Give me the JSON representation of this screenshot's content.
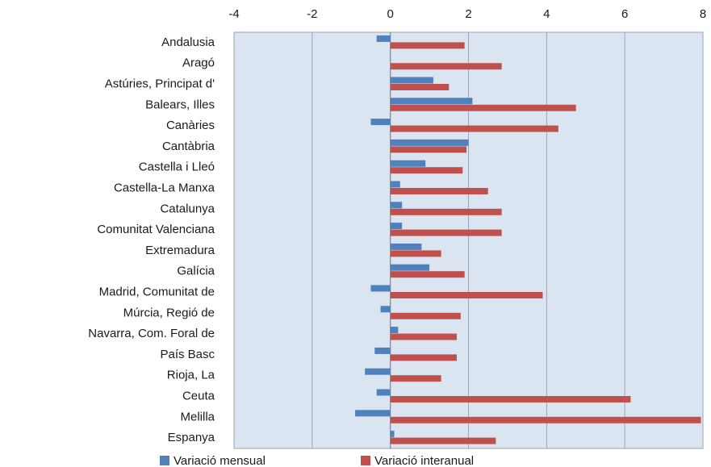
{
  "chart_data": {
    "type": "hbar",
    "categories": [
      "Andalusia",
      "Aragó",
      "Astúries, Principat d'",
      "Balears, Illes",
      "Canàries",
      "Cantàbria",
      "Castella  i Lleó",
      "Castella-La Manxa",
      "Catalunya",
      "Comunitat Valenciana",
      "Extremadura",
      "Galícia",
      "Madrid, Comunitat de",
      "Múrcia, Regió de",
      "Navarra, Com. Foral de",
      "País Basc",
      "Rioja, La",
      "Ceuta",
      "Melilla",
      "Espanya"
    ],
    "series": [
      {
        "name": "Variació mensual",
        "color": "#4f81bd",
        "values": [
          -0.35,
          0.0,
          1.1,
          2.1,
          -0.5,
          2.0,
          0.9,
          0.25,
          0.3,
          0.3,
          0.8,
          1.0,
          -0.5,
          -0.25,
          0.2,
          -0.4,
          -0.65,
          -0.35,
          -0.9,
          0.1
        ]
      },
      {
        "name": "Variació interanual",
        "color": "#c0504d",
        "values": [
          1.9,
          2.85,
          1.5,
          4.75,
          4.3,
          1.95,
          1.85,
          2.5,
          2.85,
          2.85,
          1.3,
          1.9,
          3.9,
          1.8,
          1.7,
          1.7,
          1.3,
          6.15,
          7.95,
          2.7
        ]
      }
    ],
    "xlim": [
      -4,
      8
    ],
    "xticks": [
      -4,
      -2,
      0,
      2,
      4,
      6,
      8
    ],
    "grid": true,
    "legend": "bottom"
  }
}
